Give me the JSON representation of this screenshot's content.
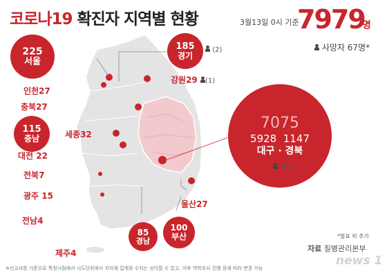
{
  "title": {
    "main": "코로나19",
    "rest": "확진자 지역별 현황"
  },
  "date": "3월13일 0시 기준",
  "total": {
    "value": "7979",
    "unit": "명"
  },
  "deaths": "사망자 67명",
  "deaths_mark": "*",
  "regions": {
    "seoul": {
      "count": "225",
      "name": "서울"
    },
    "gyeonggi": {
      "count": "185",
      "name": "경기",
      "deaths": "(2)"
    },
    "gangwon": {
      "label": "강원29",
      "deaths": "(1)"
    },
    "incheon": {
      "label": "인천27"
    },
    "chungbuk": {
      "label": "충북27"
    },
    "chungnam": {
      "count": "115",
      "name": "충남"
    },
    "sejong": {
      "label": "세종32"
    },
    "daejeon": {
      "label": "대전 22"
    },
    "jeonbuk": {
      "label": "전북7"
    },
    "gwangju": {
      "label": "광주 15"
    },
    "jeonnam": {
      "label": "전남4"
    },
    "jeju": {
      "label": "제주4"
    },
    "ulsan": {
      "label": "울산27"
    },
    "busan": {
      "count": "100",
      "name": "부산"
    },
    "gyeongnam": {
      "count": "85",
      "name": "경남"
    },
    "daegu_gyeongbuk": {
      "total": "7075",
      "daegu": "5928",
      "gyeongbuk": "1147",
      "names": "대구 · 경북",
      "deaths": "(64)"
    }
  },
  "note": "*발표 외 추가",
  "source": {
    "prefix": "자료",
    "name": "질병관리본부"
  },
  "footnote": "※신고사항 기준으로 특정시점에서 시도단위에서 지자체 집계와 수치는 상이할 수 있고, 이후 역학조사 진행 등에 따라 변경 가능",
  "logo": "news 1",
  "colors": {
    "accent": "#c8252c",
    "map": "#e4e4e4",
    "daegu_region": "#f2c9cc"
  }
}
